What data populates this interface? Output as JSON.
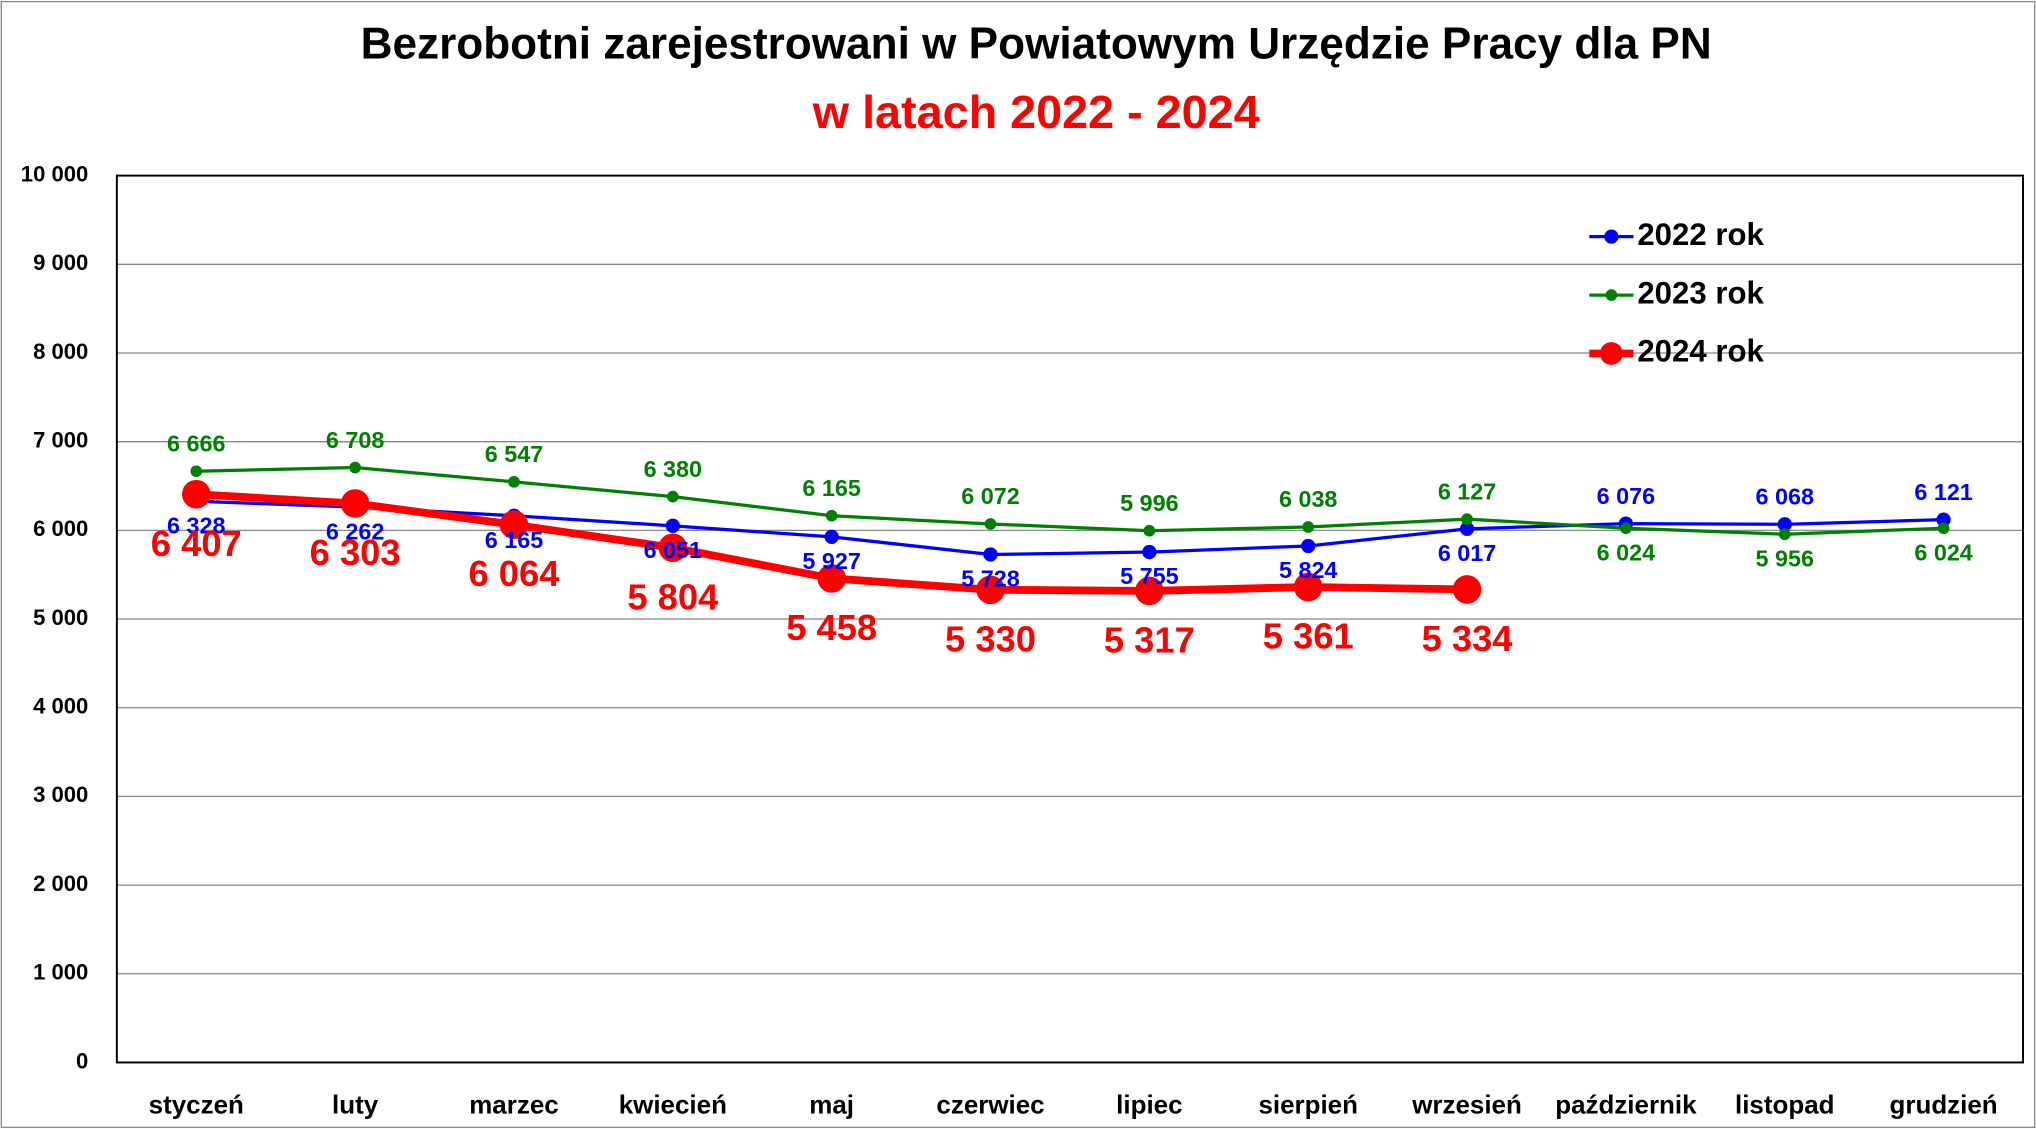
{
  "chart_data": {
    "type": "line",
    "title": "Bezrobotni zarejestrowani w Powiatowym Urzędzie Pracy dla PN",
    "subtitle": "w latach 2022 - 2024",
    "categories": [
      "styczeń",
      "luty",
      "marzec",
      "kwiecień",
      "maj",
      "czerwiec",
      "lipiec",
      "sierpień",
      "wrzesień",
      "październik",
      "listopad",
      "grudzień"
    ],
    "series": [
      {
        "name": "2022 rok",
        "color": "#0000ff",
        "values": [
          6328,
          6262,
          6165,
          6051,
          5927,
          5728,
          5755,
          5824,
          6017,
          6076,
          6068,
          6121
        ],
        "value_labels": [
          "6 328",
          "6 262",
          "6 165",
          "6 051",
          "5 927",
          "5 728",
          "5 755",
          "5 824",
          "6 017",
          "6 076",
          "6 068",
          "6 121"
        ]
      },
      {
        "name": "2023 rok",
        "color": "#008000",
        "values": [
          6666,
          6708,
          6547,
          6380,
          6165,
          6072,
          5996,
          6038,
          6127,
          6024,
          5956,
          6024
        ],
        "value_labels": [
          "6 666",
          "6 708",
          "6 547",
          "6 380",
          "6 165",
          "6 072",
          "5 996",
          "6 038",
          "6 127",
          "6 024",
          "5 956",
          "6 024"
        ]
      },
      {
        "name": "2024 rok",
        "color": "#ff0000",
        "values": [
          6407,
          6303,
          6064,
          5804,
          5458,
          5330,
          5317,
          5361,
          5334,
          null,
          null,
          null
        ],
        "value_labels": [
          "6 407",
          "6 303",
          "6 064",
          "5 804",
          "5 458",
          "5 330",
          "5 317",
          "5 361",
          "5 334",
          null,
          null,
          null
        ]
      }
    ],
    "ylim": [
      0,
      10000
    ],
    "yticks": [
      0,
      {
        "value": 1000,
        "label": "1 000"
      },
      {
        "value": 2000,
        "label": "2 000"
      },
      {
        "value": 3000,
        "label": "3 000"
      },
      {
        "value": 4000,
        "label": "4 000"
      },
      {
        "value": 5000,
        "label": "5 000"
      },
      {
        "value": 6000,
        "label": "6 000"
      },
      {
        "value": 7000,
        "label": "7 000"
      },
      {
        "value": 8000,
        "label": "8 000"
      },
      {
        "value": 9000,
        "label": "9 000"
      },
      {
        "value": 10000,
        "label": "10 000"
      }
    ],
    "grid": true,
    "legend": "top-right"
  }
}
